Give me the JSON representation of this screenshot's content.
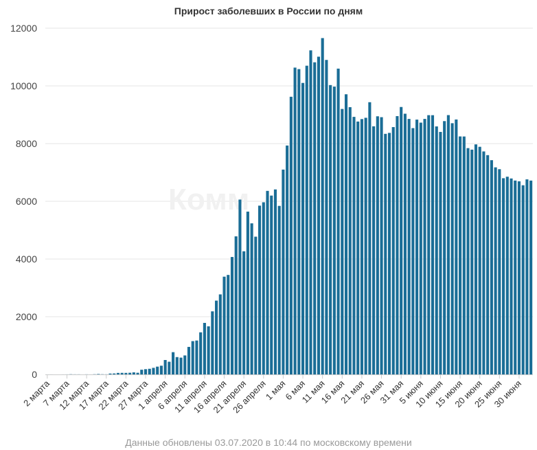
{
  "colors": {
    "bar": "#1a6d96",
    "grid": "#e6e6e6",
    "axis": "#cccccc"
  },
  "footnote": "Данные обновлены 03.07.2020 в 10:44 по московскому времени",
  "chart_data": {
    "type": "bar",
    "title": "Прирост заболевших в России по дням",
    "xlabel": "",
    "ylabel": "",
    "ylim": [
      0,
      12000
    ],
    "yticks": [
      "0",
      "2000",
      "4000",
      "6000",
      "8000",
      "10000",
      "12000"
    ],
    "grid": true,
    "legend": "none",
    "watermark": "Комм",
    "tick_labels": [
      "2 марта",
      "7 марта",
      "12 марта",
      "17 марта",
      "22 марта",
      "27 марта",
      "1 апреля",
      "6 апреля",
      "11 апреля",
      "16 апреля",
      "21 апреля",
      "26 апреля",
      "1 мая",
      "6 мая",
      "11 мая",
      "16 мая",
      "21 мая",
      "26 мая",
      "31 мая",
      "5 июня",
      "10 июня",
      "15 июня",
      "20 июня",
      "25 июня",
      "30 июня"
    ],
    "values": [
      1,
      1,
      0,
      0,
      1,
      2,
      6,
      3,
      3,
      0,
      3,
      1,
      6,
      14,
      6,
      4,
      30,
      33,
      52,
      54,
      53,
      57,
      71,
      57,
      163,
      182,
      196,
      228,
      270,
      302,
      500,
      440,
      771,
      601,
      582,
      658,
      954,
      1154,
      1175,
      1459,
      1786,
      1667,
      2186,
      2558,
      2774,
      3388,
      3448,
      4070,
      4785,
      6060,
      4268,
      5642,
      5236,
      4774,
      5849,
      5966,
      6361,
      6198,
      6411,
      5841,
      7099,
      7933,
      9623,
      10633,
      10581,
      10102,
      10699,
      11231,
      10817,
      11012,
      11656,
      10899,
      10028,
      9974,
      10598,
      9200,
      9709,
      9263,
      8926,
      8764,
      8849,
      8894,
      9434,
      8599,
      8946,
      8915,
      8338,
      8371,
      8572,
      8952,
      9268,
      9035,
      8855,
      8536,
      8831,
      8726,
      8855,
      8985,
      8984,
      8595,
      8404,
      8779,
      8987,
      8706,
      8835,
      8248,
      8246,
      7843,
      7790,
      7972,
      7889,
      7728,
      7600,
      7425,
      7176,
      7113,
      6800,
      6852,
      6791,
      6719,
      6693,
      6556,
      6760,
      6718
    ]
  }
}
